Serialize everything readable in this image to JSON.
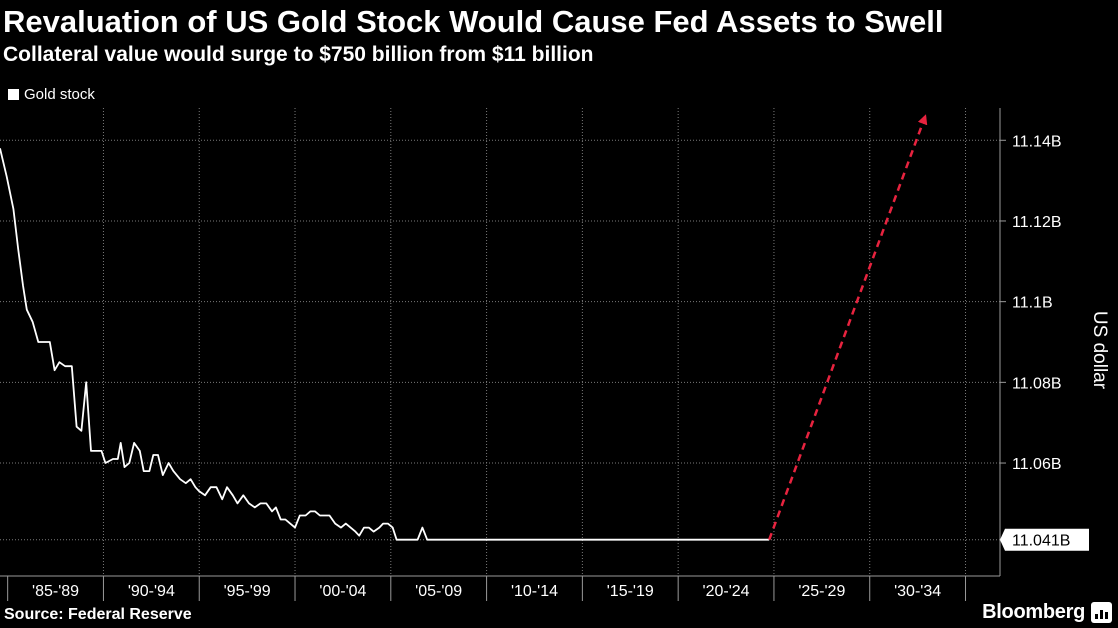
{
  "chart_data": {
    "type": "line",
    "title": "Revaluation of US Gold Stock Would Cause Fed Assets to Swell",
    "subtitle": "Collateral value would surge to $750 billion from $11 billion",
    "legend": [
      {
        "name": "Gold stock",
        "color": "#ffffff"
      }
    ],
    "ylabel": "US dollar",
    "ylim": [
      11.032,
      11.148
    ],
    "yticks": [
      {
        "value": 11.14,
        "label": "11.14B"
      },
      {
        "value": 11.12,
        "label": "11.12B"
      },
      {
        "value": 11.1,
        "label": "11.1B"
      },
      {
        "value": 11.08,
        "label": "11.08B"
      },
      {
        "value": 11.06,
        "label": "11.06B"
      }
    ],
    "last_value_label": {
      "value": 11.041,
      "label": "11.041B"
    },
    "xlim": [
      1984.6,
      2036.8
    ],
    "xgroups": [
      {
        "label": "'85-'89",
        "start": 1985,
        "end": 1990
      },
      {
        "label": "'90-'94",
        "start": 1990,
        "end": 1995
      },
      {
        "label": "'95-'99",
        "start": 1995,
        "end": 2000
      },
      {
        "label": "'00-'04",
        "start": 2000,
        "end": 2005
      },
      {
        "label": "'05-'09",
        "start": 2005,
        "end": 2010
      },
      {
        "label": "'10-'14",
        "start": 2010,
        "end": 2015
      },
      {
        "label": "'15-'19",
        "start": 2015,
        "end": 2020
      },
      {
        "label": "'20-'24",
        "start": 2020,
        "end": 2025
      },
      {
        "label": "'25-'29",
        "start": 2025,
        "end": 2030
      },
      {
        "label": "'30-'34",
        "start": 2030,
        "end": 2035
      }
    ],
    "series": [
      {
        "name": "Gold stock",
        "style": "solid",
        "color": "#ffffff",
        "points": [
          [
            1984.6,
            11.138
          ],
          [
            1984.95,
            11.131
          ],
          [
            1985.3,
            11.123
          ],
          [
            1985.55,
            11.113
          ],
          [
            1985.8,
            11.104
          ],
          [
            1986.0,
            11.098
          ],
          [
            1986.3,
            11.095
          ],
          [
            1986.6,
            11.09
          ],
          [
            1987.2,
            11.09
          ],
          [
            1987.45,
            11.083
          ],
          [
            1987.7,
            11.085
          ],
          [
            1988.0,
            11.084
          ],
          [
            1988.35,
            11.084
          ],
          [
            1988.6,
            11.069
          ],
          [
            1988.85,
            11.068
          ],
          [
            1989.1,
            11.08
          ],
          [
            1989.35,
            11.063
          ],
          [
            1989.9,
            11.063
          ],
          [
            1990.1,
            11.06
          ],
          [
            1990.5,
            11.061
          ],
          [
            1990.75,
            11.061
          ],
          [
            1990.9,
            11.065
          ],
          [
            1991.1,
            11.059
          ],
          [
            1991.35,
            11.06
          ],
          [
            1991.6,
            11.065
          ],
          [
            1991.9,
            11.063
          ],
          [
            1992.1,
            11.058
          ],
          [
            1992.4,
            11.058
          ],
          [
            1992.6,
            11.062
          ],
          [
            1992.85,
            11.062
          ],
          [
            1993.1,
            11.057
          ],
          [
            1993.4,
            11.06
          ],
          [
            1993.65,
            11.058
          ],
          [
            1994.0,
            11.056
          ],
          [
            1994.3,
            11.055
          ],
          [
            1994.55,
            11.056
          ],
          [
            1994.8,
            11.054
          ],
          [
            1995.0,
            11.053
          ],
          [
            1995.3,
            11.052
          ],
          [
            1995.6,
            11.054
          ],
          [
            1995.9,
            11.054
          ],
          [
            1996.2,
            11.051
          ],
          [
            1996.45,
            11.054
          ],
          [
            1996.75,
            11.052
          ],
          [
            1997.0,
            11.05
          ],
          [
            1997.3,
            11.052
          ],
          [
            1997.6,
            11.05
          ],
          [
            1997.9,
            11.049
          ],
          [
            1998.2,
            11.05
          ],
          [
            1998.5,
            11.05
          ],
          [
            1998.8,
            11.048
          ],
          [
            1999.0,
            11.049
          ],
          [
            1999.25,
            11.046
          ],
          [
            1999.5,
            11.046
          ],
          [
            1999.75,
            11.045
          ],
          [
            2000.0,
            11.044
          ],
          [
            2000.25,
            11.047
          ],
          [
            2000.55,
            11.047
          ],
          [
            2000.8,
            11.048
          ],
          [
            2001.05,
            11.048
          ],
          [
            2001.3,
            11.047
          ],
          [
            2001.6,
            11.047
          ],
          [
            2001.8,
            11.047
          ],
          [
            2002.1,
            11.045
          ],
          [
            2002.4,
            11.044
          ],
          [
            2002.65,
            11.045
          ],
          [
            2002.9,
            11.044
          ],
          [
            2003.15,
            11.043
          ],
          [
            2003.35,
            11.042
          ],
          [
            2003.6,
            11.044
          ],
          [
            2003.85,
            11.044
          ],
          [
            2004.1,
            11.043
          ],
          [
            2004.4,
            11.044
          ],
          [
            2004.6,
            11.045
          ],
          [
            2004.85,
            11.045
          ],
          [
            2005.1,
            11.044
          ],
          [
            2005.3,
            11.041
          ],
          [
            2005.6,
            11.041
          ],
          [
            2005.9,
            11.041
          ],
          [
            2006.1,
            11.041
          ],
          [
            2006.4,
            11.041
          ],
          [
            2006.65,
            11.044
          ],
          [
            2006.9,
            11.041
          ],
          [
            2010.0,
            11.041
          ],
          [
            2015.0,
            11.041
          ],
          [
            2020.0,
            11.041
          ],
          [
            2024.75,
            11.041
          ]
        ]
      },
      {
        "name": "",
        "style": "dashed",
        "color": "#e8233f",
        "arrow": true,
        "points": [
          [
            2024.75,
            11.041
          ],
          [
            2032.9,
            11.146
          ]
        ]
      }
    ],
    "grid": true,
    "source": "Source: Federal Reserve",
    "brand": "Bloomberg"
  }
}
